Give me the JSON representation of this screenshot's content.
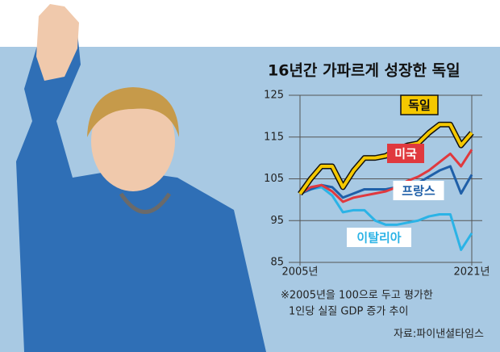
{
  "chart_data": {
    "type": "line",
    "title": "16년간 가파르게 성장한 독일",
    "note": [
      "※2005년을 100으로 두고 평가한",
      "1인당 실질 GDP 증가 추이"
    ],
    "source": "자료:파이낸셜타임스",
    "x": [
      2005,
      2006,
      2007,
      2008,
      2009,
      2010,
      2011,
      2012,
      2013,
      2014,
      2015,
      2016,
      2017,
      2018,
      2019,
      2020,
      2021
    ],
    "xlim": [
      2005,
      2021
    ],
    "xticks": [
      {
        "value": 2005,
        "label": "2005년"
      },
      {
        "value": 2021,
        "label": "2021년"
      }
    ],
    "ylim": [
      85,
      125
    ],
    "yticks": [
      85,
      95,
      105,
      115,
      125
    ],
    "grid": true,
    "series": [
      {
        "name": "독일",
        "color": "#f5c800",
        "values": [
          101.4,
          105,
          108,
          108,
          103,
          107,
          110,
          110,
          110.5,
          112,
          113,
          113.5,
          116,
          118,
          118,
          113,
          116
        ]
      },
      {
        "name": "미국",
        "color": "#e0393e",
        "values": [
          101.4,
          103,
          103.5,
          102,
          99.5,
          100.5,
          101,
          101.5,
          102,
          103,
          104.5,
          105.5,
          107,
          109,
          111,
          108,
          112
        ]
      },
      {
        "name": "프랑스",
        "color": "#1f5fa8",
        "values": [
          101.4,
          102.5,
          103.5,
          103,
          100.5,
          101.5,
          102.5,
          102.5,
          102.5,
          103,
          103.5,
          104,
          105.5,
          107,
          108,
          101.5,
          106
        ]
      },
      {
        "name": "이탈리아",
        "color": "#2bb3e6",
        "values": [
          101.4,
          102.5,
          103,
          101,
          97,
          97.5,
          97.5,
          95,
          94,
          94,
          94.5,
          95,
          96,
          96.5,
          96.5,
          88,
          92
        ]
      }
    ]
  }
}
